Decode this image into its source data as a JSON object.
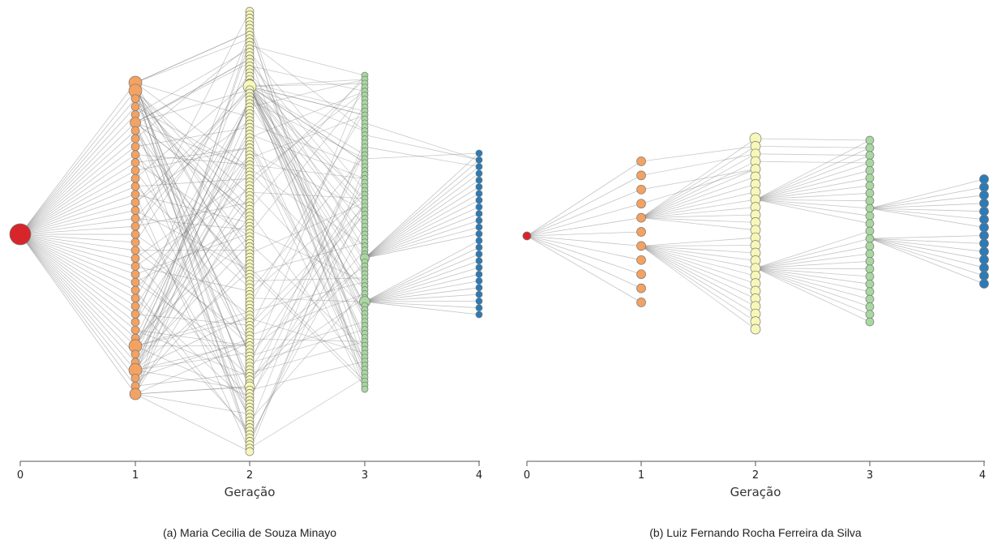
{
  "axis_title": "Geração",
  "colors": {
    "generation_0": "#d7262b",
    "generation_1": "#f4a261",
    "generation_2": "#f7f7b8",
    "generation_3": "#a8d8a0",
    "generation_4": "#2c7bb6"
  },
  "panels": [
    {
      "id": "a",
      "caption": "(a) Maria Cecilia de Souza Minayo",
      "ticks": [
        "0",
        "1",
        "2",
        "3",
        "4"
      ],
      "generation_sizes": [
        1,
        40,
        130,
        80,
        25
      ]
    },
    {
      "id": "b",
      "caption": "(b) Luiz Fernando Rocha Ferreira da Silva",
      "ticks": [
        "0",
        "1",
        "2",
        "3",
        "4"
      ],
      "generation_sizes": [
        1,
        11,
        26,
        25,
        14
      ]
    }
  ]
}
